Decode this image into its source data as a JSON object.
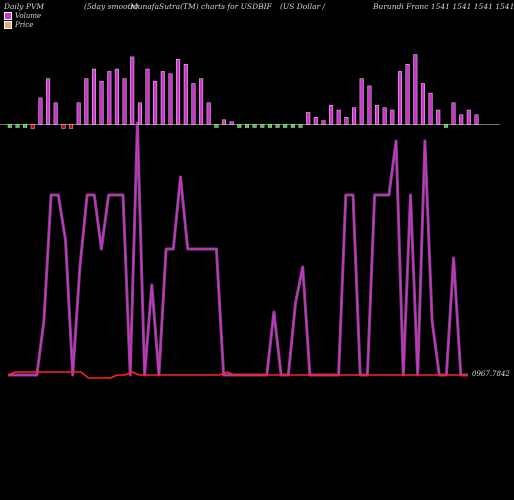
{
  "header": {
    "left": "Daily PVM",
    "mid1": "(5day smooth)",
    "mid2": "MunafaSutra(TM) charts for USDBIF",
    "mid3": "(US Dollar /",
    "right": "Burundi  Franc 1541 1541 1541 1541"
  },
  "legend": {
    "volume_label": "Volume",
    "price_label": "Price"
  },
  "colors": {
    "background": "#000000",
    "volume_bar": "#cc33cc",
    "volume_down": "#cc0000",
    "volume_flat": "#33cc33",
    "volume_line": "#ff88ff",
    "price_line": "#ff2222",
    "baseline": "#888888"
  },
  "chart_data": {
    "type": "bar",
    "price_label": "0967.7842",
    "volume_bars": [
      0.04,
      0.03,
      0.03,
      0.0,
      0.55,
      0.95,
      0.45,
      0.03,
      0.03,
      0.45,
      0.95,
      1.15,
      0.9,
      1.1,
      1.15,
      0.95,
      1.4,
      0.45,
      1.15,
      0.9,
      1.1,
      1.05,
      1.35,
      1.25,
      0.85,
      0.95,
      0.45,
      0.2,
      0.1,
      0.06,
      0.04,
      0.02,
      0.02,
      0.01,
      0.01,
      0.01,
      0.01,
      0.01,
      0.01,
      0.25,
      0.15,
      0.08,
      0.4,
      0.3,
      0.15,
      0.35,
      0.95,
      0.8,
      0.4,
      0.35,
      0.3,
      1.1,
      1.25,
      1.45,
      0.85,
      0.65,
      0.3,
      0.1,
      0.45,
      0.2,
      0.3,
      0.2
    ],
    "volume_bar_colors": [
      "g",
      "g",
      "g",
      "r",
      "p",
      "p",
      "p",
      "r",
      "r",
      "p",
      "p",
      "p",
      "p",
      "p",
      "p",
      "p",
      "p",
      "p",
      "p",
      "p",
      "p",
      "p",
      "p",
      "p",
      "p",
      "p",
      "p",
      "g",
      "p",
      "p",
      "g",
      "g",
      "g",
      "g",
      "g",
      "g",
      "g",
      "g",
      "g",
      "p",
      "p",
      "p",
      "p",
      "p",
      "p",
      "p",
      "p",
      "p",
      "p",
      "p",
      "p",
      "p",
      "p",
      "p",
      "p",
      "p",
      "p",
      "g",
      "p",
      "p",
      "p",
      "p"
    ],
    "volume_line": [
      0.0,
      0.0,
      0.0,
      0.0,
      0.0,
      0.3,
      1.0,
      1.0,
      0.75,
      0.0,
      0.6,
      1.0,
      1.0,
      0.7,
      1.0,
      1.0,
      1.0,
      0.0,
      1.4,
      0.0,
      0.5,
      0.0,
      0.7,
      0.7,
      1.1,
      0.7,
      0.7,
      0.7,
      0.7,
      0.7,
      0.0,
      0.0,
      0.0,
      0.0,
      0.0,
      0.0,
      0.0,
      0.35,
      0.0,
      0.0,
      0.4,
      0.6,
      0.0,
      0.0,
      0.0,
      0.0,
      0.0,
      1.0,
      1.0,
      0.0,
      0.0,
      1.0,
      1.0,
      1.0,
      1.3,
      0.0,
      1.0,
      0.0,
      1.3,
      0.3,
      0.0,
      0.0,
      0.65,
      0.0,
      0.0
    ],
    "price_line": [
      0.0,
      0.02,
      0.02,
      0.02,
      0.02,
      0.02,
      0.02,
      0.02,
      0.02,
      0.02,
      0.02,
      -0.02,
      -0.02,
      -0.02,
      -0.02,
      0.0,
      0.0,
      0.02,
      0.0,
      0.0,
      0.0,
      0.0,
      0.0,
      0.0,
      0.0,
      0.0,
      0.0,
      0.0,
      0.0,
      0.0,
      0.02,
      0.0,
      0.0,
      0.0,
      0.0,
      0.0,
      0.0,
      0.0,
      0.0,
      0.0,
      0.0,
      0.0,
      0.0,
      0.0,
      0.0,
      0.0,
      0.0,
      0.0,
      0.0,
      0.0,
      0.0,
      0.0,
      0.0,
      0.0,
      0.0,
      0.0,
      0.0,
      0.0,
      0.0,
      0.0,
      0.0,
      0.0,
      0.0,
      0.0
    ]
  }
}
